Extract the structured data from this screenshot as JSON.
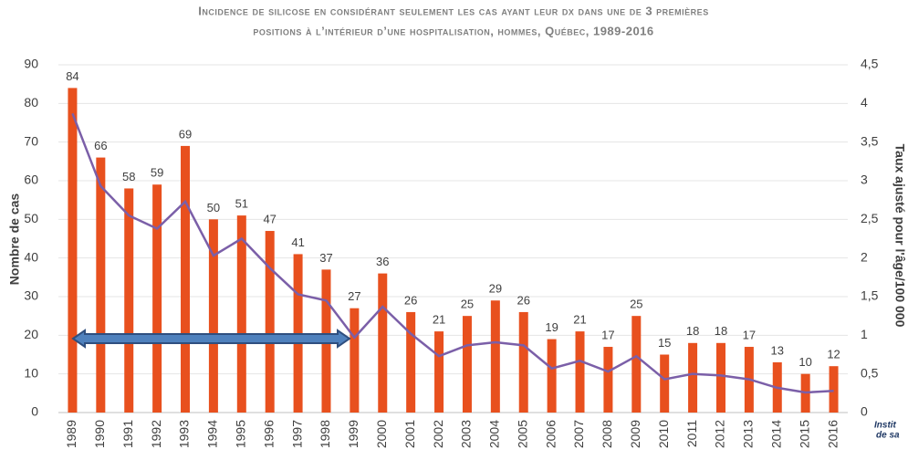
{
  "chart_data": {
    "type": "bar",
    "title": [
      "Incidence de silicose en considérant seulement les cas ayant leur dx dans une de 3 premières",
      "positions à l’intérieur d’une hospitalisation, hommes, Québec, 1989-2016"
    ],
    "ylabel": "Nombre de cas",
    "y2label": "Taux ajusté pour l'âge/100 000",
    "categories": [
      "1989",
      "1990",
      "1991",
      "1992",
      "1993",
      "1994",
      "1995",
      "1996",
      "1997",
      "1998",
      "1999",
      "2000",
      "2001",
      "2002",
      "2003",
      "2004",
      "2005",
      "2006",
      "2007",
      "2008",
      "2009",
      "2010",
      "2011",
      "2012",
      "2013",
      "2014",
      "2015",
      "2016"
    ],
    "series": [
      {
        "type": "bar",
        "color": "#e8501e",
        "values": [
          84,
          66,
          58,
          59,
          69,
          50,
          51,
          47,
          41,
          37,
          27,
          36,
          26,
          21,
          25,
          29,
          26,
          19,
          21,
          17,
          25,
          15,
          18,
          18,
          17,
          13,
          10,
          12
        ]
      },
      {
        "type": "line",
        "axis": "y2",
        "color": "#7b5fa8",
        "values": [
          3.87,
          2.93,
          2.55,
          2.38,
          2.73,
          2.03,
          2.25,
          1.87,
          1.53,
          1.45,
          0.97,
          1.37,
          1.02,
          0.73,
          0.87,
          0.91,
          0.87,
          0.57,
          0.67,
          0.53,
          0.73,
          0.43,
          0.5,
          0.48,
          0.43,
          0.32,
          0.26,
          0.28
        ]
      }
    ],
    "ylim": [
      0,
      90
    ],
    "yticks": [
      0,
      10,
      20,
      30,
      40,
      50,
      60,
      70,
      80,
      90
    ],
    "y2lim": [
      0,
      4.5
    ],
    "y2ticks": [
      0,
      {
        "value": 0.5,
        "label": "0,5"
      },
      1,
      {
        "value": 1.5,
        "label": "1,5"
      },
      2,
      {
        "value": 2.5,
        "label": "2,5"
      },
      3,
      {
        "value": 3.5,
        "label": "3,5"
      },
      4,
      {
        "value": 4.5,
        "label": "4,5"
      }
    ],
    "grid": true,
    "logo": [
      "Instit",
      "de sa"
    ]
  }
}
